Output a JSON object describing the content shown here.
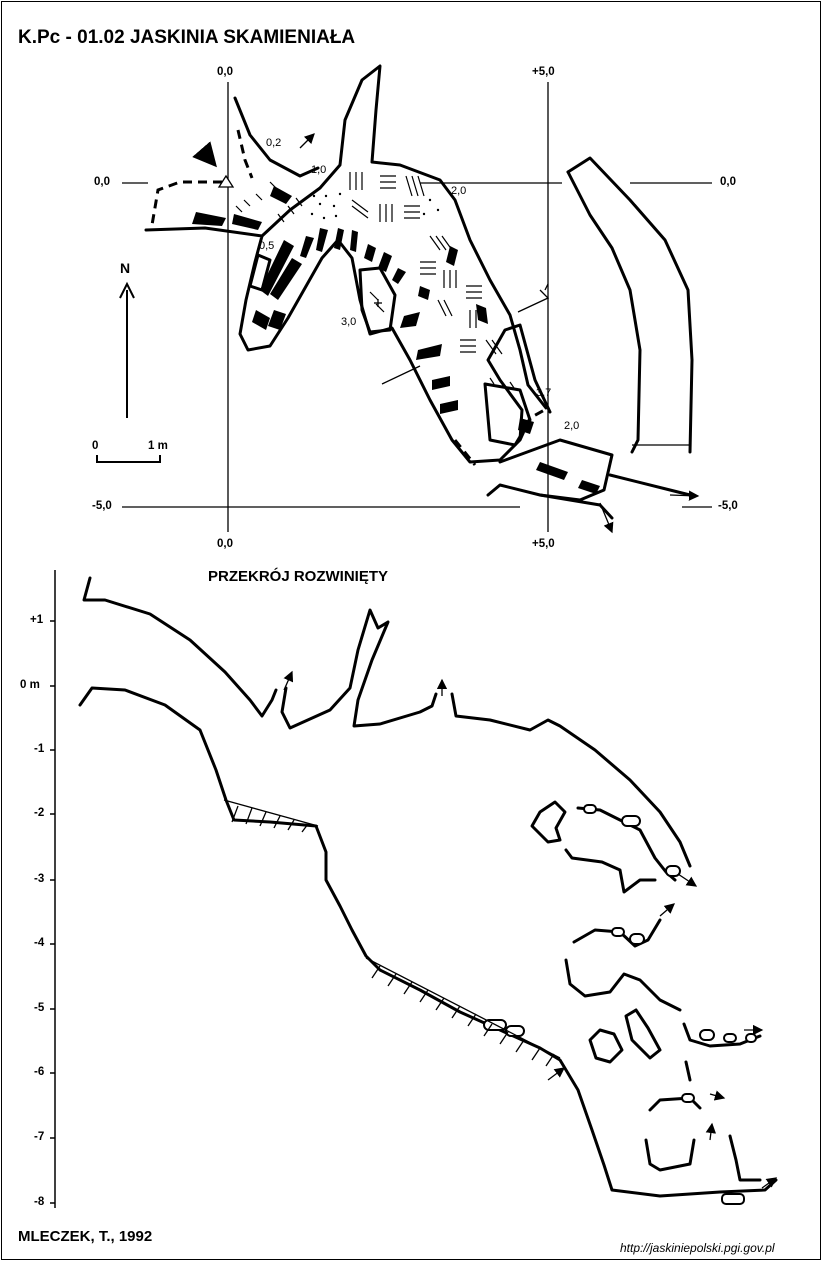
{
  "header": {
    "title": "K.Pc - 01.02  JASKINIA SKAMIENIAŁA"
  },
  "plan": {
    "grid_labels": {
      "top_left_zero": "0,0",
      "top_right_plus5": "+5,0",
      "left_zero": "0,0",
      "right_zero": "0,0",
      "left_minus5": "-5,0",
      "right_minus5": "-5,0",
      "bottom_left_zero": "0,0",
      "bottom_right_plus5": "+5,0"
    },
    "depth_labels": {
      "d1": "0,2",
      "d2": "1,0",
      "d3": "2,0",
      "d4": "0,5",
      "d5": "3,0",
      "d6": "3,7",
      "d7": "2,0"
    },
    "north_label": "N",
    "scale": {
      "start": "0",
      "end": "1 m"
    }
  },
  "section": {
    "title": "PRZEKRÓJ ROZWINIĘTY",
    "axis_ticks": [
      "+1",
      "0 m",
      "-1",
      "-2",
      "-3",
      "-4",
      "-5",
      "-6",
      "-7",
      "-8"
    ]
  },
  "footer": {
    "author": "MLECZEK, T., 1992",
    "url": "http://jaskiniepolski.pgi.gov.pl"
  }
}
